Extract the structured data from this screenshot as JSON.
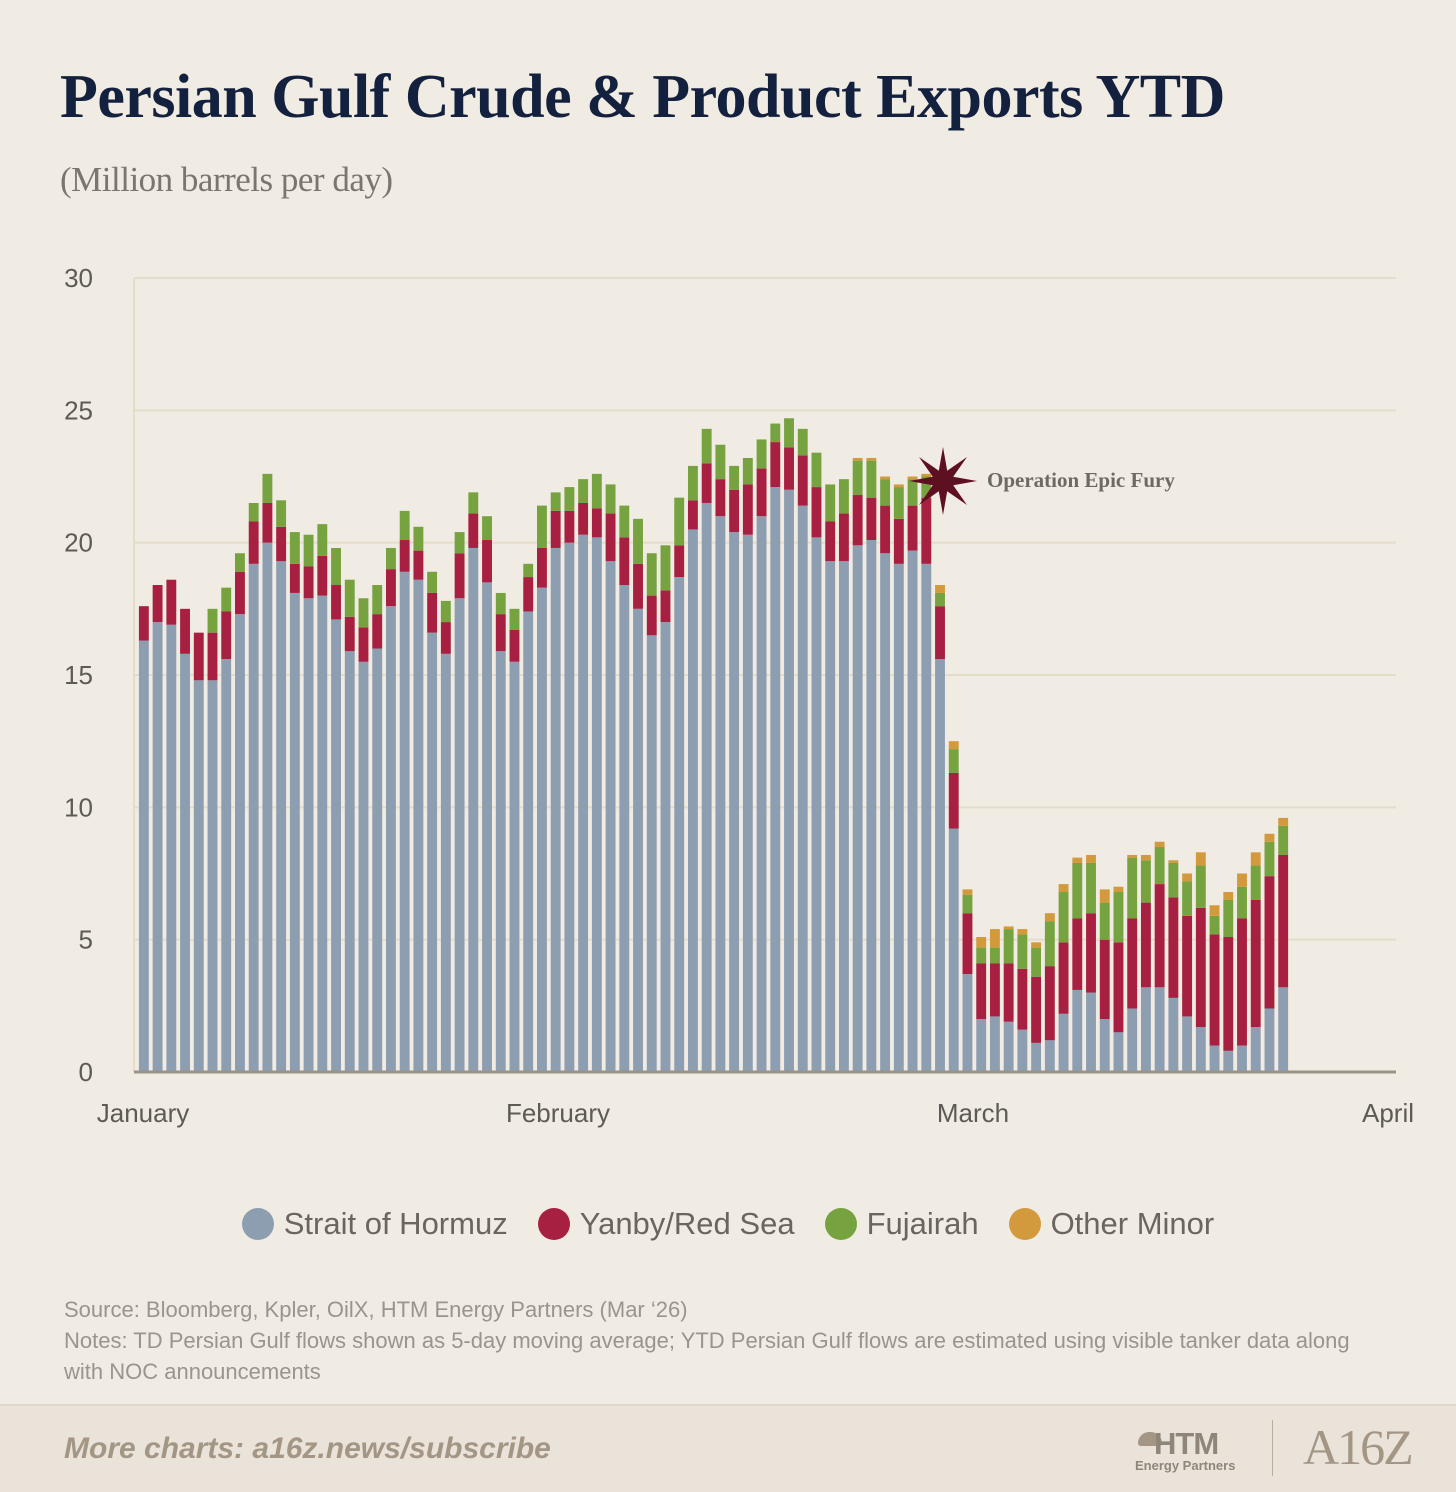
{
  "title": "Persian Gulf Crude & Product Exports YTD",
  "subtitle": "(Million barrels per day)",
  "source": "Source: Bloomberg, Kpler, OilX, HTM Energy Partners (Mar ‘26)",
  "notes": "Notes: TD Persian Gulf flows shown as 5-day moving average; YTD Persian Gulf flows are estimated using visible tanker data along with NOC announcements",
  "footer": {
    "link": "More charts: a16z.news/subscribe",
    "htm_logo": "HTM",
    "htm_logo_sub": "Energy Partners",
    "a16z_logo": "A16Z"
  },
  "colors": {
    "Strait of Hormuz": "#8e9eb1",
    "Yanby/Red Sea": "#a82041",
    "Fujairah": "#76a23f",
    "Other Minor": "#d39a3d",
    "annotation_star": "#5e1021",
    "grid": "#e3ddc9",
    "axis": "#9b9385",
    "axis_text": "#5e5a55",
    "annotation_text": "#6e6a63"
  },
  "chart_data": {
    "type": "bar",
    "stacked": true,
    "title": "Persian Gulf Crude & Product Exports YTD",
    "ylabel": "(Million barrels per day)",
    "ylim": [
      0,
      30
    ],
    "yticks": [
      0,
      5,
      10,
      15,
      20,
      25,
      30
    ],
    "grid": true,
    "x_month_labels": [
      "January",
      "February",
      "March",
      "April"
    ],
    "bars_per_month": [
      31,
      28,
      31
    ],
    "legend_position": "bottom",
    "annotation": {
      "label": "Operation Epic Fury",
      "bar_index": 59
    },
    "series": [
      {
        "name": "Strait of Hormuz",
        "values": [
          16.3,
          17.0,
          16.9,
          15.8,
          14.8,
          14.8,
          15.6,
          17.3,
          19.2,
          20.0,
          19.3,
          18.1,
          17.9,
          18.0,
          17.1,
          15.9,
          15.5,
          16.0,
          17.6,
          18.9,
          18.6,
          16.6,
          15.8,
          17.9,
          19.8,
          18.5,
          15.9,
          15.5,
          17.4,
          18.3,
          19.8,
          20.0,
          20.3,
          20.2,
          19.3,
          18.4,
          17.5,
          16.5,
          17.0,
          18.7,
          20.5,
          21.5,
          21.0,
          20.4,
          20.3,
          21.0,
          22.1,
          22.0,
          21.4,
          20.2,
          19.3,
          19.3,
          19.9,
          20.1,
          19.6,
          19.2,
          19.7,
          19.2,
          15.6,
          9.2,
          3.7,
          2.0,
          2.1,
          1.9,
          1.6,
          1.1,
          1.2,
          2.2,
          3.1,
          3.0,
          2.0,
          1.5,
          2.4,
          3.2,
          3.2,
          2.8,
          2.1,
          1.7,
          1.0,
          0.8,
          1.0,
          1.7,
          2.4,
          3.2
        ],
        "values_note": "daily values from Jan 1 to late Mar; see JS-populated arrays"
      }
    ]
  }
}
